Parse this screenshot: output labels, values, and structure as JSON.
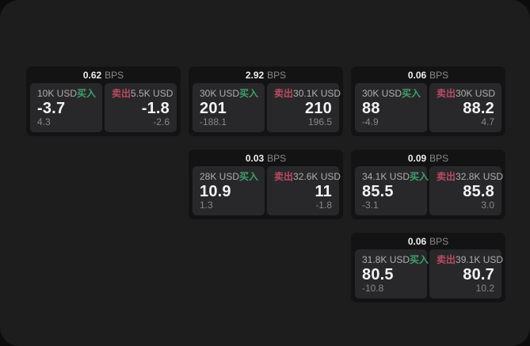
{
  "theme": {
    "buy_color": "#3da06a",
    "sell_color": "#bd4a62",
    "window_bg": "#1d1d1e",
    "card_bg": "#131314",
    "panel_bg": "#28282a"
  },
  "labels": {
    "bps_unit": "BPS",
    "buy": "买入",
    "sell": "卖出"
  },
  "cards": [
    {
      "col": 1,
      "row": 1,
      "bps": "0.62",
      "buy": {
        "amount": "10K USD",
        "value": "-3.7",
        "sub": "4.3"
      },
      "sell": {
        "amount": "5.5K USD",
        "value": "-1.8",
        "sub": "-2.6"
      }
    },
    {
      "col": 2,
      "row": 1,
      "bps": "2.92",
      "buy": {
        "amount": "30K USD",
        "value": "201",
        "sub": "-188.1"
      },
      "sell": {
        "amount": "30.1K USD",
        "value": "210",
        "sub": "196.5"
      }
    },
    {
      "col": 3,
      "row": 1,
      "bps": "0.06",
      "buy": {
        "amount": "30K USD",
        "value": "88",
        "sub": "-4.9"
      },
      "sell": {
        "amount": "30K USD",
        "value": "88.2",
        "sub": "4.7"
      }
    },
    {
      "col": 2,
      "row": 2,
      "bps": "0.03",
      "buy": {
        "amount": "28K USD",
        "value": "10.9",
        "sub": "1.3"
      },
      "sell": {
        "amount": "32.6K USD",
        "value": "11",
        "sub": "-1.8"
      }
    },
    {
      "col": 3,
      "row": 2,
      "bps": "0.09",
      "buy": {
        "amount": "34.1K USD",
        "value": "85.5",
        "sub": "-3.1"
      },
      "sell": {
        "amount": "32.8K USD",
        "value": "85.8",
        "sub": "3.0"
      }
    },
    {
      "col": 3,
      "row": 3,
      "bps": "0.06",
      "buy": {
        "amount": "31.8K USD",
        "value": "80.5",
        "sub": "-10.8"
      },
      "sell": {
        "amount": "39.1K USD",
        "value": "80.7",
        "sub": "10.2"
      }
    }
  ]
}
